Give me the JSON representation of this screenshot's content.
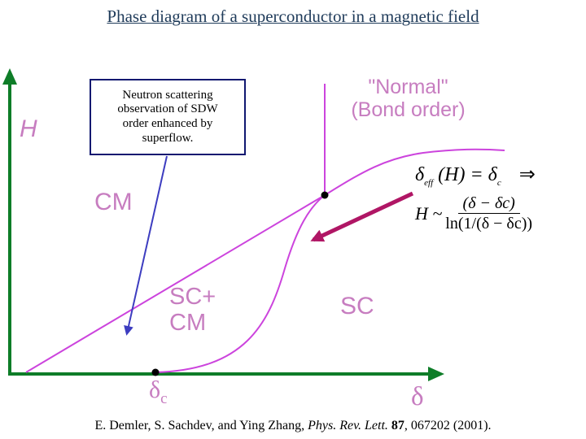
{
  "title": "Phase diagram of a superconductor in a magnetic field",
  "callout": {
    "line1": "Neutron scattering",
    "line2": "observation of SDW",
    "line3": "order enhanced by",
    "line4": "superflow."
  },
  "axis_labels": {
    "y": "H",
    "x": "δ"
  },
  "regions": {
    "normal_line1": "\"Normal\"",
    "normal_line2": "(Bond order)",
    "cm": "CM",
    "sc_cm_line1": "SC+",
    "sc_cm_line2": "CM",
    "sc": "SC"
  },
  "delta_c": {
    "base": "δ",
    "sub": "c"
  },
  "formula": {
    "eq1_lhs": "δ",
    "eq1_sub": "eff",
    "eq1_mid": " (H) = δ",
    "eq1_rsub": "c",
    "eq1_implies": "⇒",
    "eq2_lhs": "H ~",
    "eq2_num": "(δ − δc)",
    "eq2_den": "ln(1/(δ − δc))"
  },
  "citation": {
    "authors": "E. Demler, S. Sachdev, and Ying Zhang, ",
    "journal": "Phys. Rev. Lett.",
    "volume": " 87",
    "rest": ", 067202 (2001)."
  },
  "colors": {
    "axis": "#0e7d28",
    "phase_line": "#cc44dd",
    "label": "#c77dc0",
    "callout_border": "#101870",
    "callout_arrow": "#3d3dc0",
    "formula_arrow": "#b01665"
  }
}
